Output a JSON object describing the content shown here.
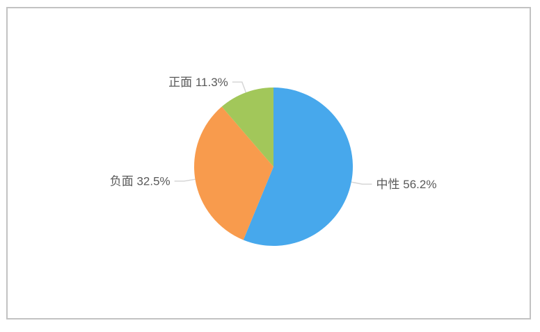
{
  "frame": {
    "border_color": "#c2c2c2",
    "background": "#ffffff"
  },
  "chart_data": {
    "type": "pie",
    "title": "",
    "categories": [
      "中性",
      "负面",
      "正面"
    ],
    "values": [
      56.2,
      32.5,
      11.3
    ],
    "slices": [
      {
        "id": "neutral",
        "label": "中性",
        "value": 56.2,
        "display": "中性 56.2%",
        "color": "#47a8ec"
      },
      {
        "id": "negative",
        "label": "负面",
        "value": 32.5,
        "display": "负面 32.5%",
        "color": "#f89b4d"
      },
      {
        "id": "positive",
        "label": "正面",
        "value": 11.3,
        "display": "正面 11.3%",
        "color": "#a2c75a"
      }
    ],
    "start_angle_deg": 0,
    "direction": "clockwise",
    "legend": "none",
    "grid": "off",
    "label_line_color": "#d6d6d6",
    "label_text_color": "#595959"
  }
}
